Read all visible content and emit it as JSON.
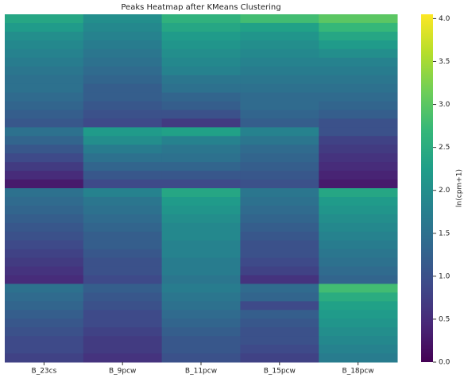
{
  "chart_data": {
    "type": "heatmap",
    "title": "Peaks Heatmap after KMeans Clustering",
    "categories": [
      "B_23cs",
      "B_9pcw",
      "B_11pcw",
      "B_15pcw",
      "B_18pcw"
    ],
    "values": [
      [
        2.4,
        2.0,
        2.6,
        2.8,
        3.0
      ],
      [
        2.2,
        1.9,
        2.4,
        2.3,
        2.7
      ],
      [
        2.0,
        1.8,
        2.2,
        2.1,
        2.4
      ],
      [
        1.9,
        1.7,
        2.1,
        2.0,
        2.2
      ],
      [
        1.8,
        1.6,
        2.0,
        1.9,
        2.0
      ],
      [
        1.7,
        1.5,
        1.9,
        1.8,
        1.8
      ],
      [
        1.6,
        1.4,
        1.8,
        1.7,
        1.7
      ],
      [
        1.5,
        1.3,
        1.6,
        1.6,
        1.6
      ],
      [
        1.5,
        1.2,
        1.5,
        1.5,
        1.5
      ],
      [
        1.4,
        1.2,
        1.3,
        1.4,
        1.4
      ],
      [
        1.3,
        1.1,
        1.2,
        1.4,
        1.3
      ],
      [
        1.2,
        1.0,
        1.0,
        1.3,
        1.2
      ],
      [
        1.1,
        0.9,
        0.7,
        1.2,
        1.0
      ],
      [
        1.5,
        2.2,
        2.3,
        1.8,
        1.0
      ],
      [
        1.3,
        2.0,
        1.8,
        1.6,
        0.8
      ],
      [
        1.1,
        1.7,
        1.6,
        1.4,
        0.7
      ],
      [
        0.9,
        1.5,
        1.5,
        1.3,
        0.6
      ],
      [
        0.7,
        1.3,
        1.3,
        1.2,
        0.5
      ],
      [
        0.5,
        1.1,
        1.1,
        1.1,
        0.4
      ],
      [
        0.3,
        0.9,
        0.9,
        1.0,
        0.3
      ],
      [
        1.5,
        1.8,
        2.4,
        1.6,
        2.4
      ],
      [
        1.4,
        1.6,
        2.2,
        1.5,
        2.2
      ],
      [
        1.3,
        1.5,
        2.1,
        1.4,
        2.1
      ],
      [
        1.2,
        1.4,
        2.0,
        1.3,
        2.0
      ],
      [
        1.1,
        1.3,
        1.9,
        1.2,
        1.9
      ],
      [
        1.0,
        1.2,
        1.9,
        1.1,
        1.8
      ],
      [
        0.9,
        1.2,
        1.8,
        1.0,
        1.7
      ],
      [
        0.8,
        1.1,
        1.8,
        1.0,
        1.6
      ],
      [
        0.7,
        1.0,
        1.7,
        0.9,
        1.5
      ],
      [
        0.6,
        1.0,
        1.7,
        0.8,
        1.4
      ],
      [
        0.5,
        0.9,
        1.6,
        0.6,
        1.3
      ],
      [
        1.5,
        1.2,
        1.7,
        1.4,
        2.8
      ],
      [
        1.4,
        1.1,
        1.6,
        1.3,
        2.5
      ],
      [
        1.3,
        1.0,
        1.5,
        0.9,
        2.3
      ],
      [
        1.2,
        0.9,
        1.4,
        1.2,
        2.2
      ],
      [
        1.1,
        0.9,
        1.3,
        1.1,
        2.1
      ],
      [
        1.0,
        0.8,
        1.2,
        1.0,
        2.0
      ],
      [
        0.9,
        0.7,
        1.1,
        1.0,
        1.9
      ],
      [
        0.9,
        0.7,
        1.1,
        0.9,
        1.8
      ],
      [
        0.8,
        0.6,
        1.0,
        0.8,
        1.7
      ]
    ],
    "colormap": "viridis",
    "colorbar_label": "ln(cpm+1)",
    "clim": [
      0,
      4.05
    ],
    "cticks": [
      {
        "value": 0,
        "label": "0.0"
      },
      {
        "value": 0.5,
        "label": "0.5"
      },
      {
        "value": 1,
        "label": "1.0"
      },
      {
        "value": 1.5,
        "label": "1.5"
      },
      {
        "value": 2,
        "label": "2.0"
      },
      {
        "value": 2.5,
        "label": "2.5"
      },
      {
        "value": 3,
        "label": "3.0"
      },
      {
        "value": 3.5,
        "label": "3.5"
      },
      {
        "value": 4,
        "label": "4.0"
      }
    ]
  }
}
